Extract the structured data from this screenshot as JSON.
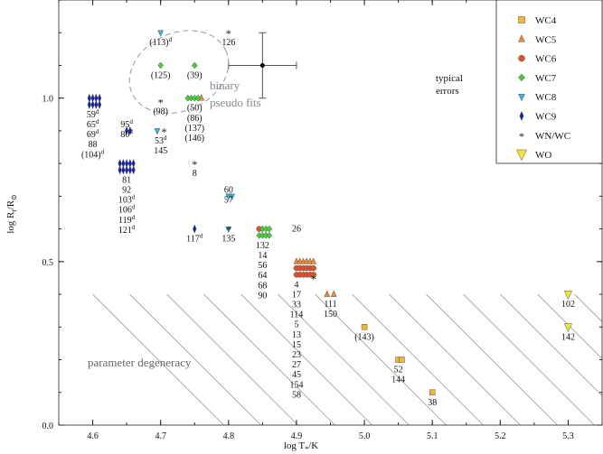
{
  "chart_data": {
    "type": "scatter",
    "title": "",
    "xlabel": "log T",
    "xlabel_sub": "*",
    "xlabel_unit": "/K",
    "ylabel": "log R",
    "ylabel_sub": "t",
    "ylabel_unit": "/R",
    "ylabel_unit_sub": "⊙",
    "xlim": [
      4.55,
      5.35
    ],
    "ylim": [
      0.0,
      1.3
    ],
    "xticks": [
      "4.6",
      "4.7",
      "4.8",
      "4.9",
      "5.0",
      "5.1",
      "5.2",
      "5.3"
    ],
    "yticks": [
      "0.0",
      "0.5",
      "1.0"
    ],
    "legend_position": "top-right",
    "legend": [
      {
        "name": "WC4",
        "marker": "square",
        "color": "#f5b731"
      },
      {
        "name": "WC5",
        "marker": "triangle",
        "color": "#f28a2e"
      },
      {
        "name": "WC6",
        "marker": "circle",
        "color": "#e2512a"
      },
      {
        "name": "WC7",
        "marker": "diamond",
        "color": "#45d13a"
      },
      {
        "name": "WC8",
        "marker": "triangle-down",
        "color": "#35b8dc"
      },
      {
        "name": "WC9",
        "marker": "thin-diamond",
        "color": "#1020b0"
      },
      {
        "name": "WN/WC",
        "marker": "star",
        "color": "#444444"
      },
      {
        "name": "WO",
        "marker": "tri-down",
        "color": "#f0e830"
      }
    ],
    "series": [
      {
        "name": "WC4",
        "points": [
          [
            5.0,
            0.3
          ],
          [
            5.05,
            0.2
          ],
          [
            5.055,
            0.2
          ],
          [
            5.1,
            0.1
          ]
        ]
      },
      {
        "name": "WC5",
        "points": [
          [
            4.76,
            1.0
          ],
          [
            4.9,
            0.5
          ],
          [
            4.905,
            0.5
          ],
          [
            4.91,
            0.5
          ],
          [
            4.915,
            0.5
          ],
          [
            4.92,
            0.5
          ],
          [
            4.925,
            0.5
          ],
          [
            4.945,
            0.4
          ],
          [
            4.955,
            0.4
          ]
        ]
      },
      {
        "name": "WC6",
        "points": [
          [
            4.845,
            0.6
          ],
          [
            4.9,
            0.48
          ],
          [
            4.905,
            0.48
          ],
          [
            4.91,
            0.48
          ],
          [
            4.915,
            0.48
          ],
          [
            4.92,
            0.48
          ],
          [
            4.925,
            0.48
          ],
          [
            4.9,
            0.46
          ],
          [
            4.905,
            0.46
          ],
          [
            4.91,
            0.46
          ],
          [
            4.915,
            0.46
          ],
          [
            4.92,
            0.46
          ],
          [
            4.925,
            0.46
          ]
        ]
      },
      {
        "name": "WC7",
        "points": [
          [
            4.7,
            1.1
          ],
          [
            4.75,
            1.1
          ],
          [
            4.74,
            1.0
          ],
          [
            4.745,
            1.0
          ],
          [
            4.75,
            1.0
          ],
          [
            4.755,
            1.0
          ],
          [
            4.85,
            0.6
          ],
          [
            4.855,
            0.6
          ],
          [
            4.86,
            0.6
          ],
          [
            4.845,
            0.58
          ],
          [
            4.85,
            0.58
          ],
          [
            4.855,
            0.58
          ],
          [
            4.86,
            0.58
          ]
        ]
      },
      {
        "name": "WC8",
        "points": [
          [
            4.7,
            1.2
          ],
          [
            4.695,
            0.9
          ],
          [
            4.8,
            0.7
          ],
          [
            4.805,
            0.7
          ],
          [
            4.8,
            0.6
          ]
        ]
      },
      {
        "name": "WC9",
        "points": [
          [
            4.595,
            1.0
          ],
          [
            4.6,
            1.0
          ],
          [
            4.605,
            1.0
          ],
          [
            4.61,
            1.0
          ],
          [
            4.595,
            0.98
          ],
          [
            4.6,
            0.98
          ],
          [
            4.605,
            0.98
          ],
          [
            4.61,
            0.98
          ],
          [
            4.65,
            0.9
          ],
          [
            4.655,
            0.9
          ],
          [
            4.64,
            0.8
          ],
          [
            4.645,
            0.8
          ],
          [
            4.65,
            0.8
          ],
          [
            4.655,
            0.8
          ],
          [
            4.66,
            0.8
          ],
          [
            4.64,
            0.78
          ],
          [
            4.645,
            0.78
          ],
          [
            4.65,
            0.78
          ],
          [
            4.655,
            0.78
          ],
          [
            4.66,
            0.78
          ],
          [
            4.75,
            0.6
          ]
        ]
      },
      {
        "name": "WN/WC",
        "points": [
          [
            4.8,
            1.2
          ],
          [
            4.7,
            0.99
          ],
          [
            4.705,
            0.9
          ],
          [
            4.75,
            0.8
          ],
          [
            4.8,
            0.6
          ],
          [
            4.925,
            0.45
          ]
        ]
      },
      {
        "name": "WO",
        "points": [
          [
            5.3,
            0.4
          ],
          [
            5.3,
            0.3
          ]
        ]
      }
    ],
    "point_labels": [
      {
        "x": 4.7,
        "y": 1.2,
        "lines": [
          [
            "(113)",
            "d"
          ]
        ]
      },
      {
        "x": 4.8,
        "y": 1.2,
        "lines": [
          [
            "126",
            ""
          ]
        ]
      },
      {
        "x": 4.7,
        "y": 1.1,
        "lines": [
          [
            "(125)",
            ""
          ]
        ]
      },
      {
        "x": 4.75,
        "y": 1.1,
        "lines": [
          [
            "(39)",
            ""
          ]
        ]
      },
      {
        "x": 4.7,
        "y": 0.99,
        "lines": [
          [
            "(98)",
            ""
          ]
        ]
      },
      {
        "x": 4.75,
        "y": 1.0,
        "lines": [
          [
            "(50)",
            ""
          ],
          [
            "(86)",
            ""
          ],
          [
            "(137)",
            ""
          ],
          [
            "(146)",
            ""
          ]
        ]
      },
      {
        "x": 4.6,
        "y": 0.98,
        "lines": [
          [
            "59",
            "d"
          ],
          [
            "65",
            "d"
          ],
          [
            "69",
            "d"
          ],
          [
            "88",
            ""
          ],
          [
            "(104)",
            "d"
          ]
        ]
      },
      {
        "x": 4.65,
        "y": 0.95,
        "lines": [
          [
            "95",
            "d"
          ],
          [
            "80",
            "d"
          ]
        ]
      },
      {
        "x": 4.7,
        "y": 0.9,
        "lines": [
          [
            "53",
            "d"
          ],
          [
            "145",
            ""
          ]
        ]
      },
      {
        "x": 4.75,
        "y": 0.8,
        "lines": [
          [
            "8",
            ""
          ]
        ]
      },
      {
        "x": 4.65,
        "y": 0.78,
        "lines": [
          [
            "81",
            ""
          ],
          [
            "92",
            ""
          ],
          [
            "103",
            "d"
          ],
          [
            "106",
            "d"
          ],
          [
            "119",
            "d"
          ],
          [
            "121",
            "d"
          ]
        ]
      },
      {
        "x": 4.8,
        "y": 0.75,
        "lines": [
          [
            "60",
            ""
          ],
          [
            "57",
            ""
          ]
        ]
      },
      {
        "x": 4.75,
        "y": 0.6,
        "lines": [
          [
            "117",
            "d"
          ]
        ]
      },
      {
        "x": 4.8,
        "y": 0.6,
        "lines": [
          [
            "135",
            ""
          ]
        ]
      },
      {
        "x": 4.9,
        "y": 0.63,
        "lines": [
          [
            "26",
            ""
          ]
        ]
      },
      {
        "x": 4.85,
        "y": 0.58,
        "lines": [
          [
            "132",
            ""
          ],
          [
            "14",
            ""
          ],
          [
            "56",
            ""
          ],
          [
            "64",
            ""
          ],
          [
            "68",
            ""
          ],
          [
            "90",
            ""
          ]
        ]
      },
      {
        "x": 4.9,
        "y": 0.46,
        "lines": [
          [
            "4",
            ""
          ],
          [
            "17",
            ""
          ],
          [
            "33",
            ""
          ],
          [
            "114",
            ""
          ],
          [
            "5",
            ""
          ],
          [
            "13",
            ""
          ],
          [
            "15",
            ""
          ],
          [
            "23",
            ""
          ],
          [
            "27",
            ""
          ],
          [
            "45",
            ""
          ],
          [
            "154",
            ""
          ],
          [
            "58",
            ""
          ]
        ]
      },
      {
        "x": 4.95,
        "y": 0.4,
        "lines": [
          [
            "111",
            ""
          ],
          [
            "150",
            ""
          ]
        ]
      },
      {
        "x": 5.0,
        "y": 0.3,
        "lines": [
          [
            "(143)",
            ""
          ]
        ]
      },
      {
        "x": 5.05,
        "y": 0.2,
        "lines": [
          [
            "52",
            ""
          ],
          [
            "144",
            ""
          ]
        ]
      },
      {
        "x": 5.1,
        "y": 0.1,
        "lines": [
          [
            "38",
            ""
          ]
        ]
      },
      {
        "x": 5.3,
        "y": 0.4,
        "lines": [
          [
            "102",
            ""
          ]
        ]
      },
      {
        "x": 5.3,
        "y": 0.3,
        "lines": [
          [
            "142",
            ""
          ]
        ]
      }
    ],
    "annotations": {
      "binary": [
        "binary",
        "pseudo fits"
      ],
      "typical_errors": [
        "typical",
        "errors"
      ],
      "degeneracy": "parameter degeneracy"
    },
    "typical_error_bar": {
      "x": 4.85,
      "y": 1.1,
      "xerr": 0.05,
      "yerr": 0.1
    }
  }
}
